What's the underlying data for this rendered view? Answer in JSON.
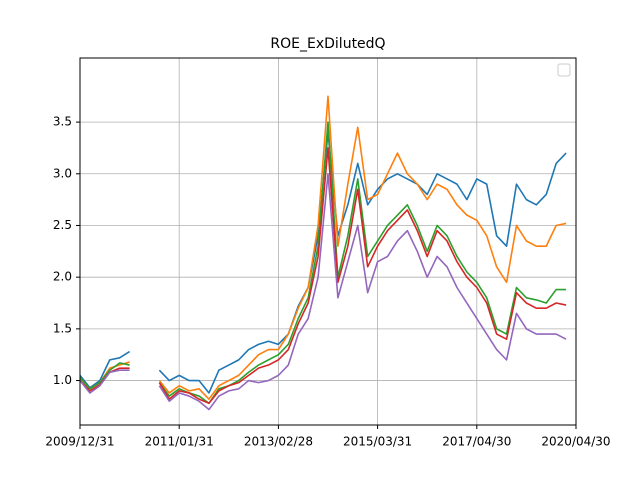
{
  "chart_data": {
    "type": "line",
    "title": "ROE_ExDilutedQ",
    "categories": [
      "2009/12/31",
      null,
      null,
      null,
      null,
      null,
      null,
      null,
      null,
      null,
      "2011/01/31",
      null,
      null,
      null,
      null,
      null,
      null,
      null,
      null,
      null,
      "2013/02/28",
      null,
      null,
      null,
      null,
      null,
      null,
      null,
      null,
      null,
      "2015/03/31",
      null,
      null,
      null,
      null,
      null,
      null,
      null,
      null,
      null,
      "2017/04/30",
      null,
      null,
      null,
      null,
      null,
      null,
      null,
      null,
      null,
      "2020/04/30"
    ],
    "series": [
      {
        "color": "#1f77b4",
        "values": [
          1.05,
          0.93,
          1.0,
          1.2,
          1.22,
          1.28,
          null,
          null,
          1.1,
          1.0,
          1.05,
          1.0,
          1.0,
          0.88,
          1.1,
          1.15,
          1.2,
          1.3,
          1.35,
          1.38,
          1.35,
          1.45,
          1.72,
          1.9,
          2.4,
          3.4,
          2.4,
          2.7,
          3.1,
          2.7,
          2.85,
          2.95,
          3.0,
          2.95,
          2.9,
          2.8,
          3.0,
          2.95,
          2.9,
          2.75,
          2.95,
          2.9,
          2.4,
          2.3,
          2.9,
          2.75,
          2.7,
          2.8,
          3.1,
          3.2,
          null
        ]
      },
      {
        "color": "#ff7f0e",
        "values": [
          1.02,
          0.92,
          0.98,
          1.12,
          1.15,
          1.18,
          null,
          null,
          1.0,
          0.88,
          0.95,
          0.9,
          0.92,
          0.82,
          0.95,
          1.0,
          1.05,
          1.15,
          1.25,
          1.3,
          1.3,
          1.45,
          1.7,
          1.9,
          2.5,
          3.75,
          2.3,
          2.9,
          3.45,
          2.75,
          2.8,
          3.0,
          3.2,
          3.0,
          2.9,
          2.75,
          2.9,
          2.85,
          2.7,
          2.6,
          2.55,
          2.4,
          2.1,
          1.95,
          2.5,
          2.35,
          2.3,
          2.3,
          2.5,
          2.52,
          null
        ]
      },
      {
        "color": "#2ca02c",
        "values": [
          1.03,
          0.92,
          0.98,
          1.1,
          1.17,
          1.15,
          null,
          null,
          0.98,
          0.85,
          0.92,
          0.88,
          0.85,
          0.78,
          0.92,
          0.95,
          1.0,
          1.08,
          1.15,
          1.2,
          1.25,
          1.35,
          1.6,
          1.8,
          2.3,
          3.5,
          2.0,
          2.4,
          2.95,
          2.2,
          2.35,
          2.5,
          2.6,
          2.7,
          2.5,
          2.25,
          2.5,
          2.4,
          2.2,
          2.05,
          1.95,
          1.8,
          1.5,
          1.45,
          1.9,
          1.8,
          1.78,
          1.75,
          1.88,
          1.88,
          null
        ]
      },
      {
        "color": "#d62728",
        "values": [
          1.0,
          0.9,
          0.96,
          1.08,
          1.12,
          1.12,
          null,
          null,
          0.98,
          0.82,
          0.9,
          0.88,
          0.82,
          0.78,
          0.9,
          0.95,
          0.98,
          1.05,
          1.12,
          1.15,
          1.2,
          1.3,
          1.55,
          1.75,
          2.2,
          3.25,
          1.95,
          2.3,
          2.85,
          2.1,
          2.3,
          2.45,
          2.55,
          2.65,
          2.45,
          2.2,
          2.45,
          2.35,
          2.15,
          2.0,
          1.9,
          1.75,
          1.45,
          1.4,
          1.85,
          1.75,
          1.7,
          1.7,
          1.75,
          1.73,
          null
        ]
      },
      {
        "color": "#9467bd",
        "values": [
          1.0,
          0.88,
          0.95,
          1.08,
          1.1,
          1.1,
          null,
          null,
          0.95,
          0.8,
          0.88,
          0.85,
          0.8,
          0.72,
          0.85,
          0.9,
          0.92,
          1.0,
          0.98,
          1.0,
          1.05,
          1.15,
          1.45,
          1.6,
          2.0,
          3.0,
          1.8,
          2.15,
          2.5,
          1.85,
          2.15,
          2.2,
          2.35,
          2.45,
          2.25,
          2.0,
          2.2,
          2.1,
          1.9,
          1.75,
          1.6,
          1.45,
          1.3,
          1.2,
          1.65,
          1.5,
          1.45,
          1.45,
          1.45,
          1.4,
          null
        ]
      }
    ],
    "ylim": [
      0.57,
      4.12
    ],
    "yticks": [
      {
        "value": 1,
        "label": "1.0"
      },
      1.5,
      {
        "value": 2,
        "label": "2.0"
      },
      2.5,
      {
        "value": 3,
        "label": "3.0"
      },
      3.5
    ],
    "grid": true,
    "legend": "upper right"
  }
}
